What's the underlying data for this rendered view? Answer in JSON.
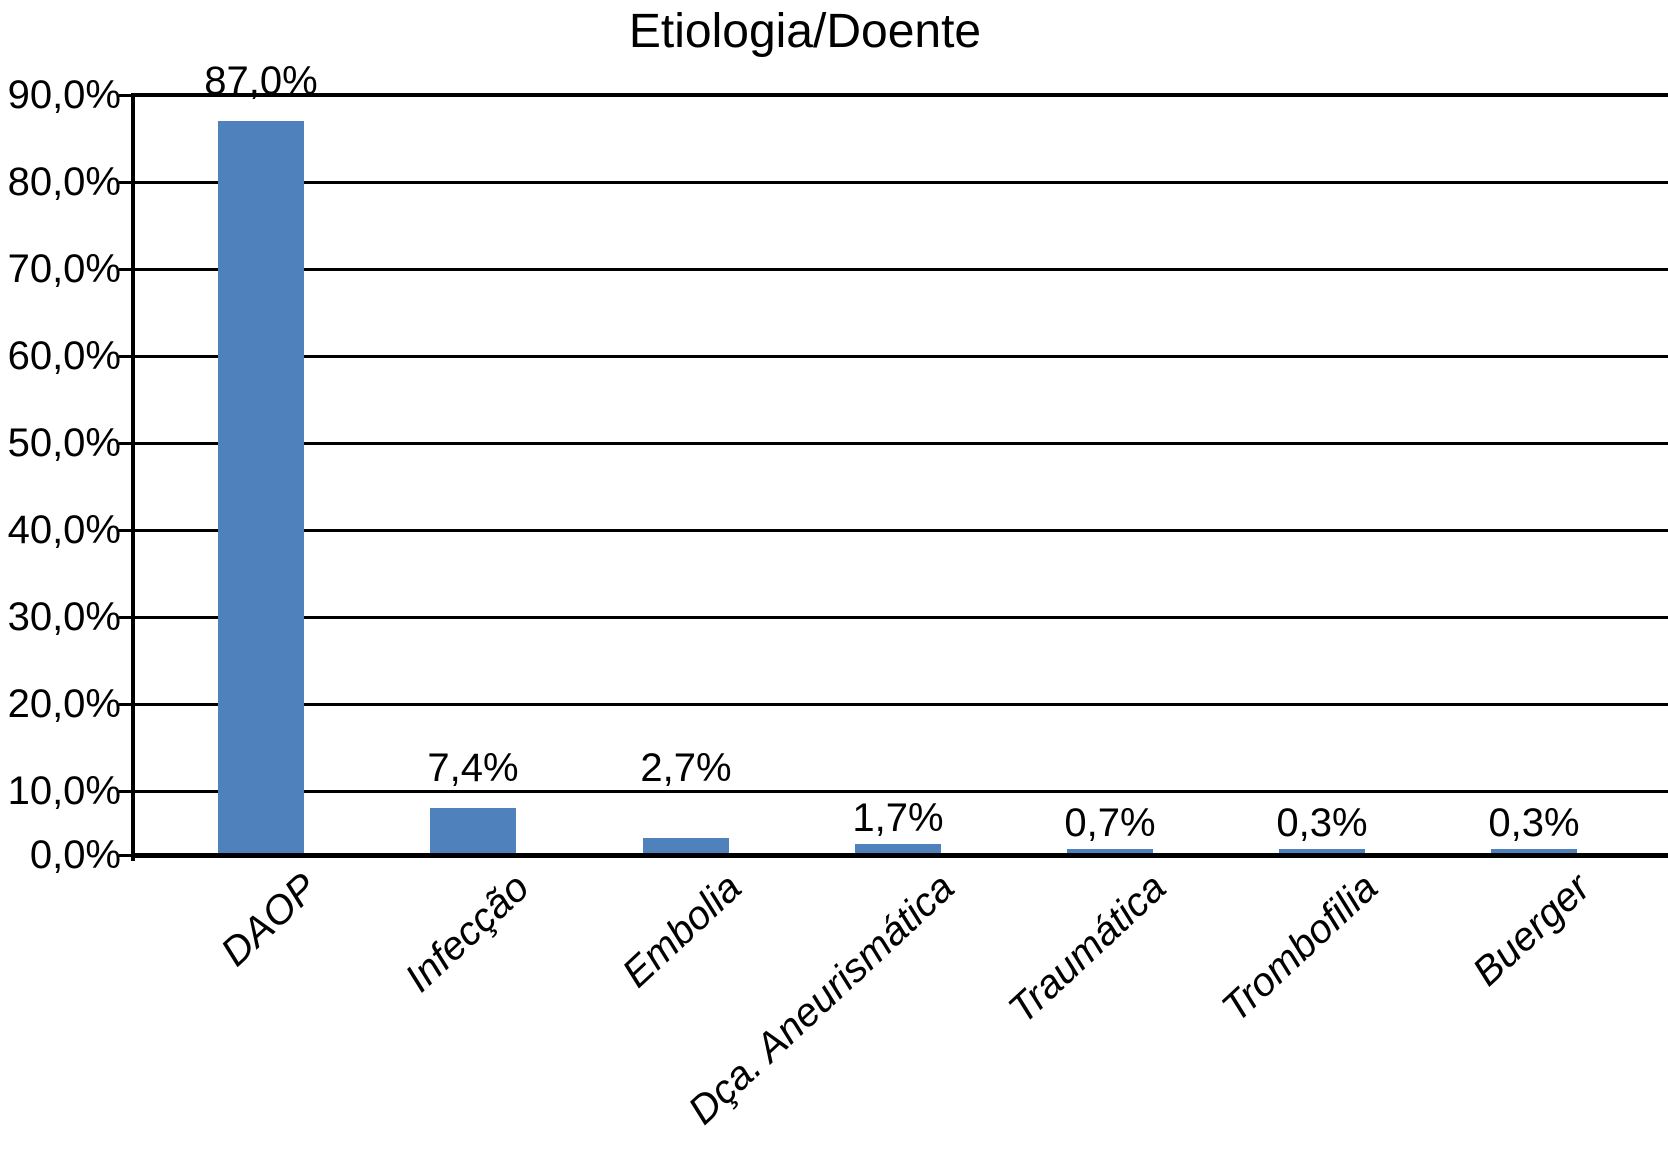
{
  "chart_data": {
    "type": "bar",
    "title": "Etiologia/Doente",
    "categories": [
      "DAOP",
      "Infecção",
      "Embolia",
      "Dça. Aneurismática",
      "Traumática",
      "Trombofilia",
      "Buerger"
    ],
    "values": [
      87.0,
      7.4,
      2.7,
      1.7,
      0.7,
      0.3,
      0.3
    ],
    "value_labels": [
      "87,0%",
      "7,4%",
      "2,7%",
      "1,7%",
      "0,7%",
      "0,3%",
      "0,3%"
    ],
    "xlabel": "",
    "ylabel": "",
    "y_axis": {
      "range": [
        0,
        90
      ],
      "ticks": [
        90,
        80,
        70,
        60,
        50,
        40,
        30,
        20,
        10,
        0
      ],
      "tick_labels": [
        "90,0%",
        "80,0%",
        "70,0%",
        "60,0%",
        "50,0%",
        "40,0%",
        "30,0%",
        "20,0%",
        "10,0%",
        "0,0%"
      ]
    },
    "grid": true,
    "legend": "none",
    "bar_color": "#4f81bd",
    "line_color": "#000000",
    "background_color": "#ffffff"
  }
}
